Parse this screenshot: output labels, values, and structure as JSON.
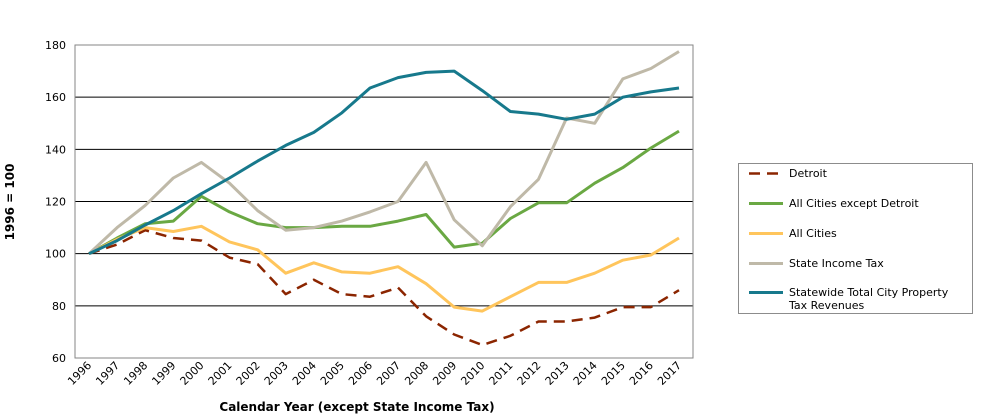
{
  "chart_data": {
    "type": "line",
    "title": "",
    "xlabel": "Calendar Year (except State Income  Tax)",
    "ylabel": "1996 = 100",
    "ylim": [
      60,
      180
    ],
    "yticks": [
      60,
      80,
      100,
      120,
      140,
      160,
      180
    ],
    "grid": true,
    "legend_position": "right",
    "x": [
      "1996",
      "1997",
      "1998",
      "1999",
      "2000",
      "2001",
      "2002",
      "2003",
      "2004",
      "2005",
      "2006",
      "2007",
      "2008",
      "2009",
      "2010",
      "2011",
      "2012",
      "2013",
      "2014",
      "2015",
      "2016",
      "2017"
    ],
    "series": [
      {
        "name": "Detroit",
        "color": "#8B2500",
        "dash": true,
        "values": [
          100,
          103.5,
          109,
          106,
          105,
          98.5,
          96,
          84.5,
          90,
          84.5,
          83.5,
          87,
          76,
          69,
          65,
          68.5,
          74,
          74,
          75.5,
          79.5,
          79.5,
          86
        ]
      },
      {
        "name": "All Cities except Detroit",
        "color": "#6AA843",
        "dash": false,
        "values": [
          100,
          106,
          111.5,
          112.5,
          122,
          116,
          111.5,
          110,
          110,
          110.5,
          110.5,
          112.5,
          115,
          102.5,
          104,
          113.5,
          119.5,
          119.5,
          127,
          133,
          140.5,
          147
        ]
      },
      {
        "name": "All Cities",
        "color": "#FFC55C",
        "dash": false,
        "values": [
          100,
          105.5,
          110,
          108.5,
          110.5,
          104.5,
          101.5,
          92.5,
          96.5,
          93,
          92.5,
          95,
          88.5,
          79.5,
          78,
          83.5,
          89,
          89,
          92.5,
          97.5,
          99.5,
          106
        ]
      },
      {
        "name": "State Income Tax",
        "color": "#BFB9A8",
        "dash": false,
        "values": [
          100,
          110,
          118.5,
          129,
          135,
          127,
          116.5,
          109,
          110,
          112.5,
          116,
          120,
          135,
          113,
          103,
          118,
          128.5,
          152,
          150,
          167,
          171,
          177.5
        ]
      },
      {
        "name": "Statewide Total City Property Tax Revenues",
        "color": "#17798C",
        "dash": false,
        "values": [
          100,
          105,
          111,
          116.5,
          123,
          129,
          135.5,
          141.5,
          146.5,
          154,
          163.5,
          167.5,
          169.5,
          170,
          162.5,
          154.5,
          153.5,
          151.5,
          153.5,
          160,
          162,
          163.5
        ]
      }
    ]
  }
}
